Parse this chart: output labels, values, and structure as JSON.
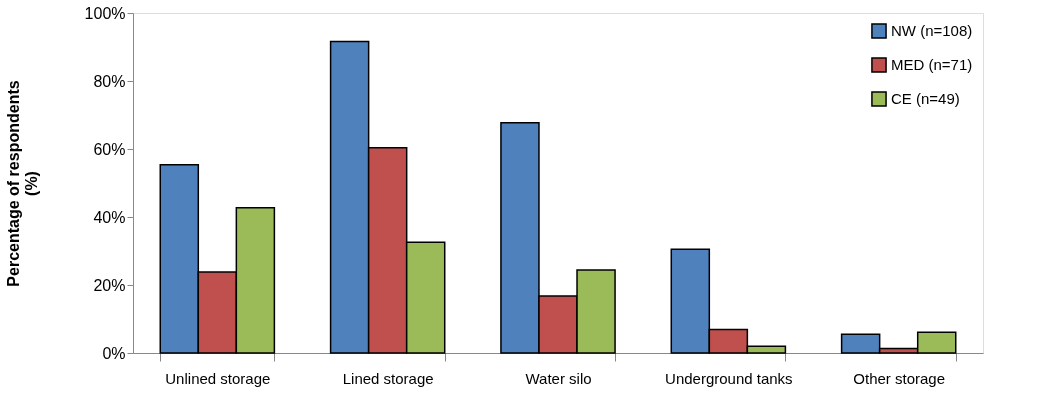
{
  "chart_data": {
    "type": "bar",
    "ylabel": "Percentage of respondents\n(%)",
    "categories": [
      "Unlined storage",
      "Lined storage",
      "Water silo",
      "Underground tanks",
      "Other storage"
    ],
    "series": [
      {
        "name": "NW (n=108)",
        "color": "#4f81bd",
        "values": [
          55.4,
          91.6,
          67.7,
          30.5,
          5.5
        ]
      },
      {
        "name": "MED (n=71)",
        "color": "#c0504d",
        "values": [
          23.8,
          60.4,
          16.8,
          6.9,
          1.3
        ]
      },
      {
        "name": "CE (n=49)",
        "color": "#9bbb59",
        "values": [
          42.7,
          32.6,
          24.4,
          2.0,
          6.1
        ]
      }
    ],
    "ylim": [
      0,
      100
    ],
    "yticks": [
      {
        "value": 0,
        "label": "0%"
      },
      {
        "value": 20,
        "label": "20%"
      },
      {
        "value": 40,
        "label": "40%"
      },
      {
        "value": 60,
        "label": "60%"
      },
      {
        "value": 80,
        "label": "80%"
      },
      {
        "value": 100,
        "label": "100%"
      }
    ],
    "grid": false,
    "legend": "top right"
  }
}
